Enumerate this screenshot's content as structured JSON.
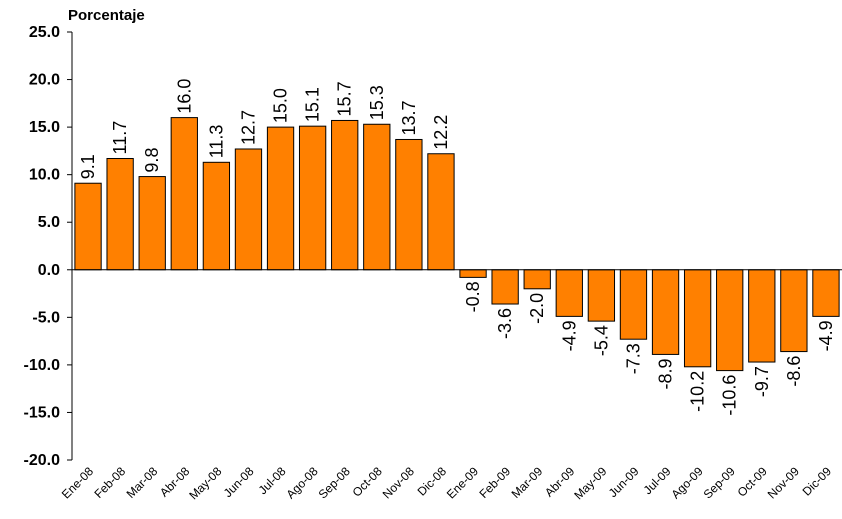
{
  "chart_data": {
    "type": "bar",
    "title": "",
    "ylabel": "Porcentaje",
    "xlabel": "",
    "ylim": [
      -20,
      25
    ],
    "yticks": [
      "25.0",
      "20.0",
      "15.0",
      "10.0",
      "5.0",
      "0.0",
      "-5.0",
      "-10.0",
      "-15.0",
      "-20.0"
    ],
    "grid": false,
    "bar_color": "#FF8000",
    "bar_outline": "#000000",
    "categories": [
      "Ene-08",
      "Feb-08",
      "Mar-08",
      "Abr-08",
      "May-08",
      "Jun-08",
      "Jul-08",
      "Ago-08",
      "Sep-08",
      "Oct-08",
      "Nov-08",
      "Dic-08",
      "Ene-09",
      "Feb-09",
      "Mar-09",
      "Abr-09",
      "May-09",
      "Jun-09",
      "Jul-09",
      "Ago-09",
      "Sep-09",
      "Oct-09",
      "Nov-09",
      "Dic-09"
    ],
    "values": [
      9.1,
      11.7,
      9.8,
      16.0,
      11.3,
      12.7,
      15.0,
      15.1,
      15.7,
      15.3,
      13.7,
      12.2,
      -0.8,
      -3.6,
      -2.0,
      -4.9,
      -5.4,
      -7.3,
      -8.9,
      -10.2,
      -10.6,
      -9.7,
      -8.6,
      -4.9
    ],
    "data_labels": [
      "9.1",
      "11.7",
      "9.8",
      "16.0",
      "11.3",
      "12.7",
      "15.0",
      "15.1",
      "15.7",
      "15.3",
      "13.7",
      "12.2",
      "-0.8",
      "-3.6",
      "-2.0",
      "-4.9",
      "-5.4",
      "-7.3",
      "-8.9",
      "-10.2",
      "-10.6",
      "-9.7",
      "-8.6",
      "-4.9"
    ]
  }
}
